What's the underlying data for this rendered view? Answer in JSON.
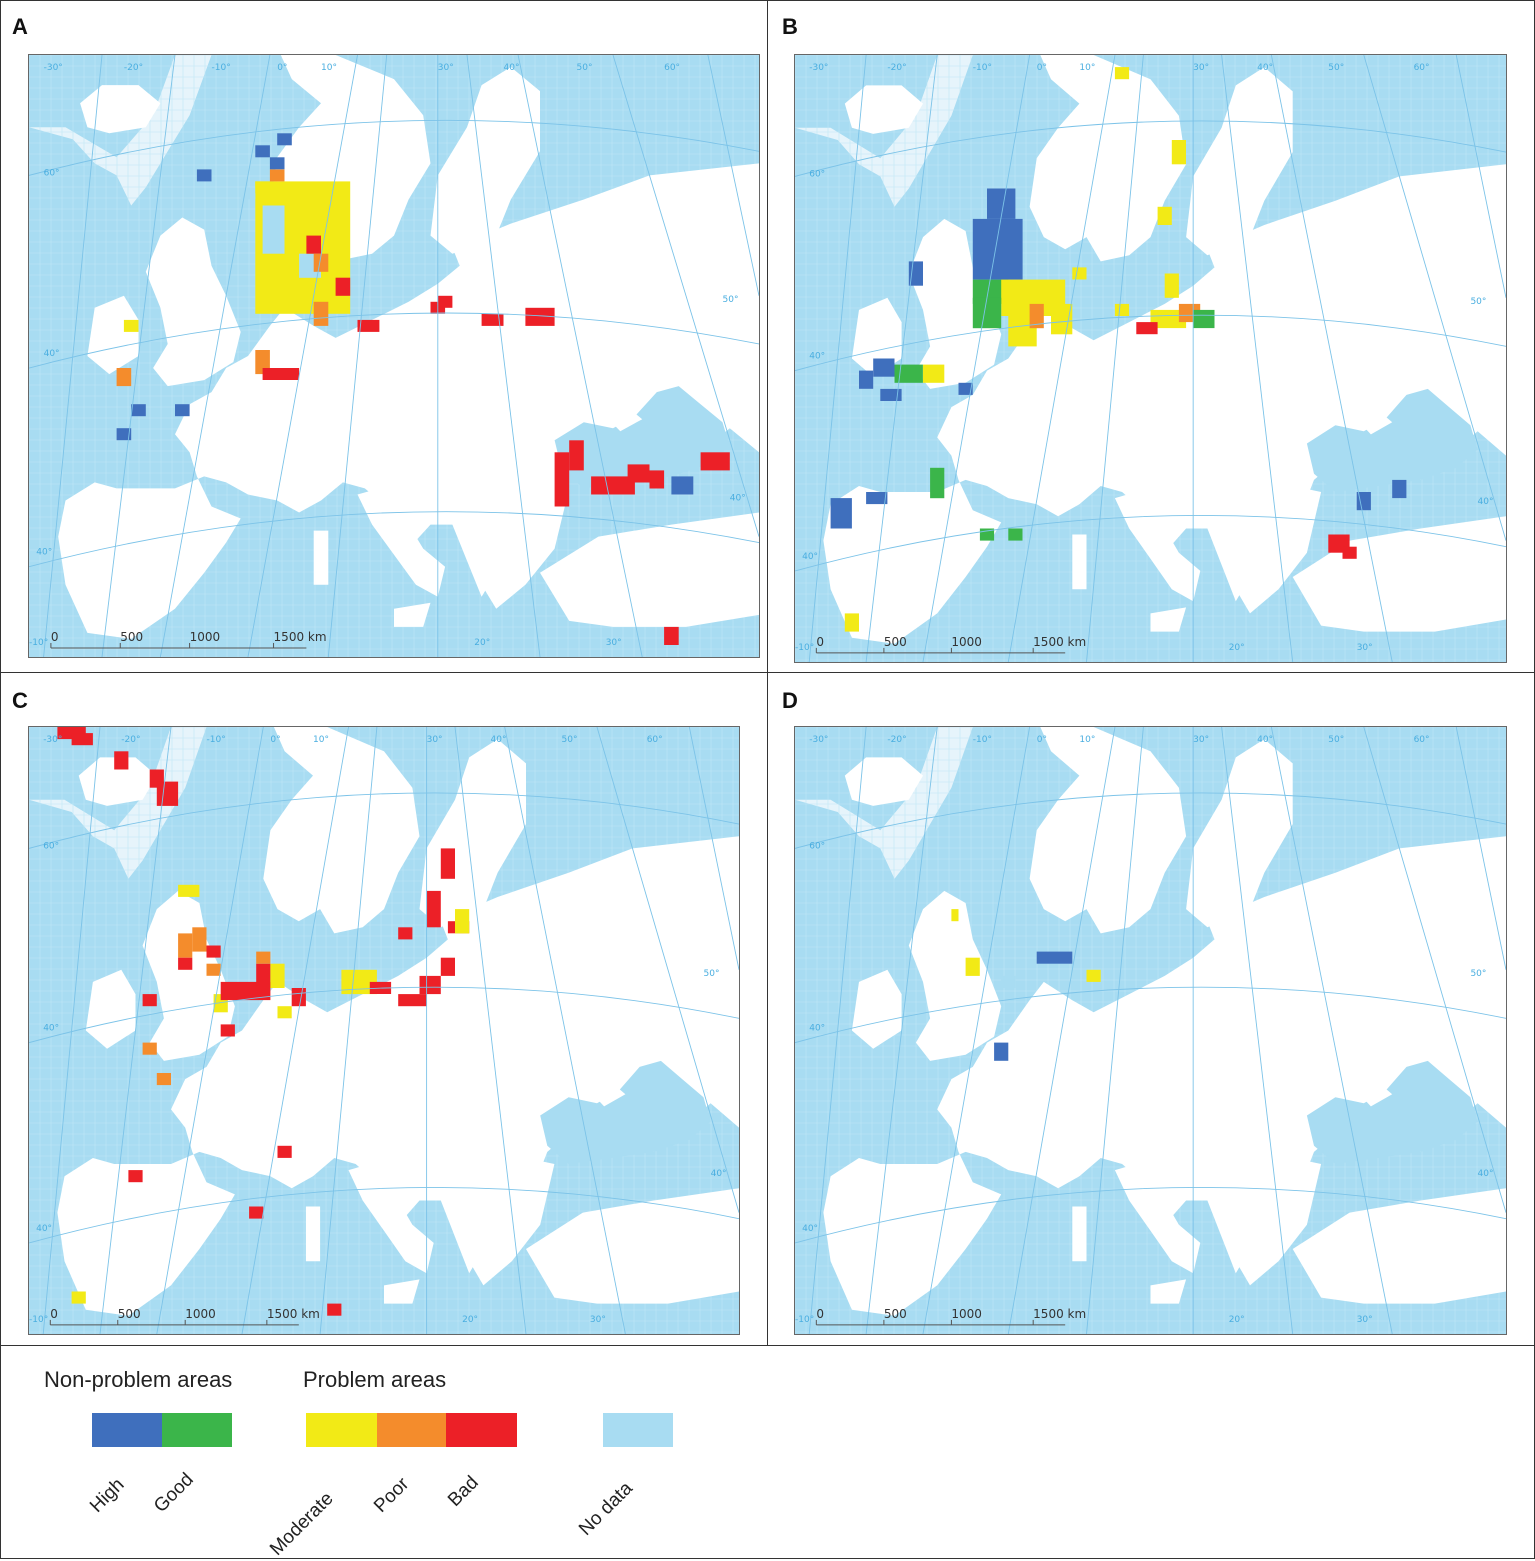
{
  "panels": [
    {
      "letter": "A",
      "id": "a"
    },
    {
      "letter": "B",
      "id": "b"
    },
    {
      "letter": "C",
      "id": "c"
    },
    {
      "letter": "D",
      "id": "d"
    }
  ],
  "map": {
    "lat_labels": [
      "60°",
      "50°",
      "40°"
    ],
    "lon_labels": [
      "-30°",
      "-20°",
      "-10°",
      "0°",
      "10°",
      "30°",
      "40°",
      "50°",
      "60°",
      "20°",
      "30°",
      "-10°"
    ],
    "scale": {
      "ticks": [
        "0",
        "500",
        "1000",
        "1500 km"
      ]
    }
  },
  "legend": {
    "non_problem_heading": "Non-problem areas",
    "problem_heading": "Problem areas",
    "classes": [
      {
        "label": "High",
        "color": "#3f6fbd"
      },
      {
        "label": "Good",
        "color": "#3bb54a"
      },
      {
        "label": "Moderate",
        "color": "#f2ea16"
      },
      {
        "label": "Poor",
        "color": "#f48c2c"
      },
      {
        "label": "Bad",
        "color": "#ec2027"
      },
      {
        "label": "No data",
        "color": "#a8dcf2"
      }
    ]
  },
  "colors": {
    "sea": "#a8dcf2",
    "outer_sea": "#e6f4fb",
    "land": "#ffffff",
    "graticule": "#7cc3e8"
  }
}
